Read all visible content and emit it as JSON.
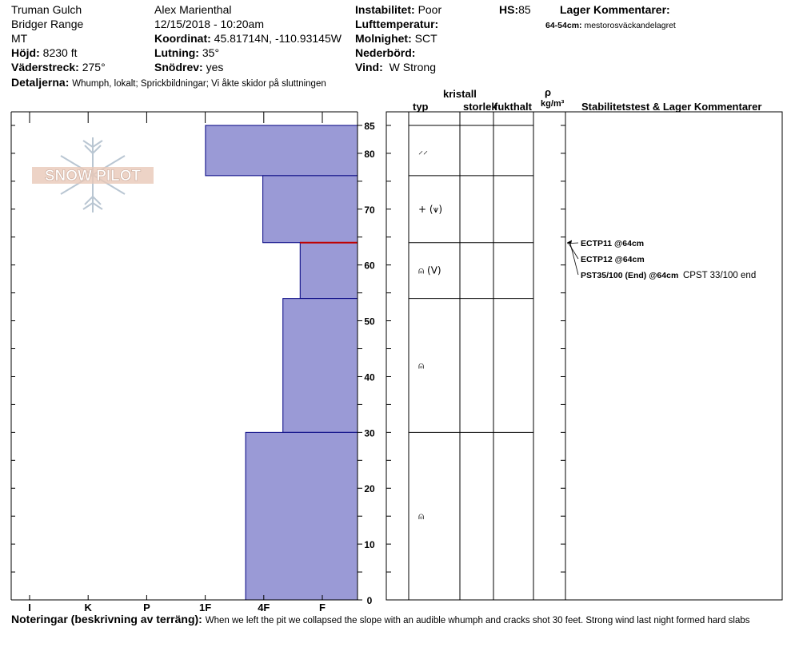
{
  "header": {
    "location": "Truman Gulch",
    "range": "Bridger Range",
    "state": "MT",
    "elevation_label": "Höjd:",
    "elevation_value": "8230 ft",
    "aspect_label": "Väderstreck:",
    "aspect_value": "275°",
    "details_label": "Detaljerna:",
    "details_value": "Whumph, lokalt;  Sprickbildningar;  Vi åkte skidor på sluttningen",
    "observer": "Alex Marienthal",
    "datetime": "12/15/2018 - 10:20am",
    "coord_label": "Koordinat:",
    "coord_value": "45.81714N, -110.93145W",
    "slope_label": "Lutning:",
    "slope_value": "35°",
    "drift_label": "Snödrev:",
    "drift_value": "yes",
    "stability_label": "Instabilitet:",
    "stability_value": "Poor",
    "airtemp_label": "Lufttemperatur:",
    "cloud_label": "Molnighet:",
    "cloud_value": "SCT",
    "precip_label": "Nederbörd:",
    "wind_label": "Vind:",
    "wind_value": "W Strong",
    "hs_label": "HS:",
    "hs_value": "85",
    "layer_comments_label": "Lager Kommentarer:",
    "layer_comment_range": "64-54cm:",
    "layer_comment_text": "mestorosväckandelagret"
  },
  "logo_text": "SNOW PILOT",
  "columns": {
    "crystal": "kristall",
    "type": "typ",
    "size": "storlek",
    "moisture": "fukthalt",
    "rho": "ρ",
    "density_unit": "kg/m³",
    "stability": "Stabilitetstest & Lager Kommentarer"
  },
  "tests": [
    {
      "label": "ECTP11 @64cm",
      "extra": ""
    },
    {
      "label": "ECTP12 @64cm",
      "extra": ""
    },
    {
      "label": "PST35/100 (End) @64cm",
      "extra": "CPST 33/100 end"
    }
  ],
  "layer_symbols": [
    "⸝⸝",
    "+ (⩛)",
    "⍝ (V)",
    "⍝",
    "⍝"
  ],
  "notes": {
    "label": "Noteringar (beskrivning av terräng):",
    "text": "When we left the pit we collapsed the slope with an audible whumph and cracks shot 30 feet. Strong wind last night formed hard slabs"
  },
  "colors": {
    "bar_fill": "#9a9ad6",
    "bar_stroke": "#000080",
    "weak_layer": "#c00000"
  },
  "chart_data": {
    "type": "bar",
    "title": "",
    "xlabel": "",
    "ylabel": "",
    "hardness_ticks": [
      "I",
      "K",
      "P",
      "1F",
      "4F",
      "F"
    ],
    "depth_ticks": [
      0,
      10,
      20,
      30,
      40,
      50,
      60,
      70,
      80,
      85
    ],
    "ylim": [
      0,
      85
    ],
    "layers": [
      {
        "bottom": 76,
        "top": 85,
        "hardness_index": 2.65
      },
      {
        "bottom": 64,
        "top": 76,
        "hardness_index": 1.65
      },
      {
        "bottom": 54,
        "top": 64,
        "hardness_index": 1.0
      },
      {
        "bottom": 30,
        "top": 54,
        "hardness_index": 1.3
      },
      {
        "bottom": 0,
        "top": 30,
        "hardness_index": 1.95
      }
    ],
    "weak_layer_depth": 64,
    "layer_boundaries": [
      85,
      76,
      64,
      54,
      30,
      0
    ]
  }
}
